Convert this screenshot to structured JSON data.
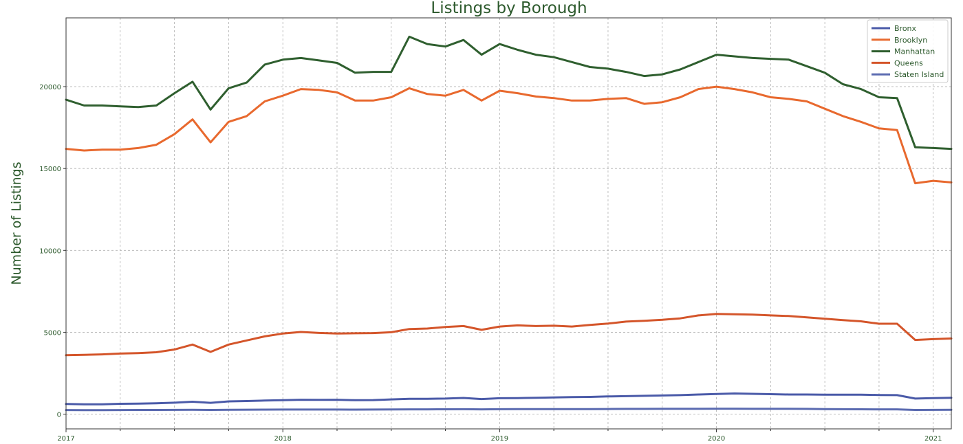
{
  "chart_data": {
    "type": "line",
    "title": "Listings by Borough",
    "ylabel": "Number of Listings",
    "xlabel": "",
    "grid": true,
    "legend_position": "top-right",
    "x_ticks": [
      "2017",
      "2018",
      "2019",
      "2020",
      "2021"
    ],
    "y_ticks": [
      "0",
      "5000",
      "10000",
      "15000",
      "20000"
    ],
    "ylim": [
      -900,
      24200
    ],
    "x": [
      "2017-01",
      "2017-02",
      "2017-03",
      "2017-04",
      "2017-05",
      "2017-06",
      "2017-07",
      "2017-08",
      "2017-09",
      "2017-10",
      "2017-11",
      "2017-12",
      "2018-01",
      "2018-02",
      "2018-03",
      "2018-04",
      "2018-05",
      "2018-06",
      "2018-07",
      "2018-08",
      "2018-09",
      "2018-10",
      "2018-11",
      "2018-12",
      "2019-01",
      "2019-02",
      "2019-03",
      "2019-04",
      "2019-05",
      "2019-06",
      "2019-07",
      "2019-08",
      "2019-09",
      "2019-10",
      "2019-11",
      "2019-12",
      "2020-01",
      "2020-02",
      "2020-03",
      "2020-04",
      "2020-05",
      "2020-06",
      "2020-07",
      "2020-08",
      "2020-09",
      "2020-10",
      "2020-11",
      "2020-12",
      "2021-01",
      "2021-02"
    ],
    "xlim": [
      "2017-01",
      "2021-02"
    ],
    "series": [
      {
        "name": "Bronx",
        "color": "#4a5aa8",
        "values": [
          620,
          600,
          600,
          630,
          640,
          660,
          700,
          760,
          690,
          780,
          800,
          830,
          850,
          880,
          870,
          880,
          850,
          860,
          900,
          940,
          940,
          950,
          990,
          920,
          970,
          980,
          1000,
          1020,
          1040,
          1050,
          1080,
          1100,
          1120,
          1140,
          1160,
          1200,
          1230,
          1260,
          1240,
          1220,
          1200,
          1200,
          1190,
          1190,
          1190,
          1170,
          1160,
          950,
          980,
          1000
        ]
      },
      {
        "name": "Brooklyn",
        "color": "#e8692e",
        "values": [
          16200,
          16100,
          16150,
          16150,
          16250,
          16450,
          17100,
          18000,
          16600,
          17850,
          18200,
          19100,
          19450,
          19850,
          19800,
          19650,
          19150,
          19150,
          19350,
          19900,
          19550,
          19450,
          19800,
          19150,
          19750,
          19600,
          19400,
          19300,
          19150,
          19150,
          19250,
          19300,
          18950,
          19050,
          19350,
          19850,
          20000,
          19850,
          19650,
          19350,
          19250,
          19100,
          18650,
          18200,
          17850,
          17450,
          17350,
          14100,
          14250,
          14150
        ]
      },
      {
        "name": "Manhattan",
        "color": "#2f5f2f",
        "values": [
          19200,
          18850,
          18850,
          18800,
          18750,
          18850,
          19600,
          20300,
          18600,
          19900,
          20250,
          21350,
          21650,
          21750,
          21600,
          21450,
          20850,
          20900,
          20900,
          23050,
          22600,
          22450,
          22850,
          21950,
          22600,
          22250,
          21950,
          21800,
          21500,
          21200,
          21100,
          20900,
          20650,
          20750,
          21050,
          21500,
          21950,
          21850,
          21750,
          21700,
          21650,
          21250,
          20850,
          20150,
          19850,
          19350,
          19300,
          16300,
          16250,
          16200
        ]
      },
      {
        "name": "Queens",
        "color": "#d4552a",
        "values": [
          3600,
          3620,
          3650,
          3700,
          3730,
          3780,
          3950,
          4250,
          3800,
          4250,
          4500,
          4750,
          4920,
          5020,
          4960,
          4920,
          4940,
          4950,
          5000,
          5200,
          5230,
          5320,
          5380,
          5150,
          5350,
          5420,
          5380,
          5400,
          5350,
          5450,
          5530,
          5650,
          5700,
          5760,
          5850,
          6030,
          6120,
          6100,
          6080,
          6030,
          5990,
          5910,
          5830,
          5740,
          5670,
          5520,
          5520,
          4530,
          4580,
          4620
        ]
      },
      {
        "name": "Staten Island",
        "color": "#5a6ab0",
        "values": [
          250,
          245,
          245,
          250,
          255,
          255,
          260,
          265,
          255,
          265,
          270,
          275,
          280,
          280,
          280,
          280,
          275,
          280,
          285,
          290,
          290,
          295,
          300,
          290,
          300,
          305,
          305,
          310,
          310,
          310,
          315,
          320,
          320,
          325,
          325,
          330,
          335,
          335,
          330,
          330,
          325,
          320,
          310,
          300,
          295,
          290,
          290,
          255,
          260,
          265
        ]
      }
    ]
  }
}
